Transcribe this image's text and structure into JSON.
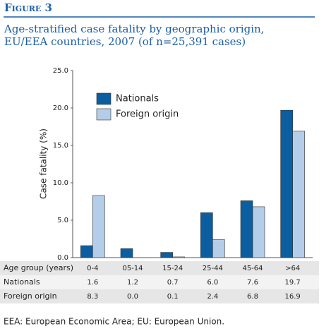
{
  "figure_label": "Figure 3",
  "chart_data": {
    "type": "bar",
    "title": "Age-stratified case fatality by geographic origin, EU/EEA countries, 2007 (of n=25,391 cases)",
    "y_label": "Case fatality (%)",
    "table_header": "Age group (years)",
    "categories": [
      "0-4",
      "05-14",
      "15-24",
      "25-44",
      "45-64",
      ">64"
    ],
    "series": [
      {
        "name": "Nationals",
        "color": "#0b5ea0",
        "values": [
          1.6,
          1.2,
          0.7,
          6.0,
          7.6,
          19.7
        ],
        "value_labels": [
          "1.6",
          "1.2",
          "0.7",
          "6.0",
          "7.6",
          "19.7"
        ]
      },
      {
        "name": "Foreign origin",
        "color": "#b4cde9",
        "values": [
          8.3,
          0.0,
          0.1,
          2.4,
          6.8,
          16.9
        ],
        "value_labels": [
          "8.3",
          "0.0",
          "0.1",
          "2.4",
          "6.8",
          "16.9"
        ]
      }
    ],
    "ylim": [
      0,
      25
    ],
    "yticks": [
      {
        "value": 0,
        "label": "0.0"
      },
      {
        "value": 5,
        "label": "5.0"
      },
      {
        "value": 10,
        "label": "10.0"
      },
      {
        "value": 15,
        "label": "15.0"
      },
      {
        "value": 20,
        "label": "20.0"
      },
      {
        "value": 25,
        "label": "25.0"
      }
    ],
    "legend": "upper left",
    "grid": false
  },
  "footnote": "EEA: European Economic Area; EU: European Union."
}
